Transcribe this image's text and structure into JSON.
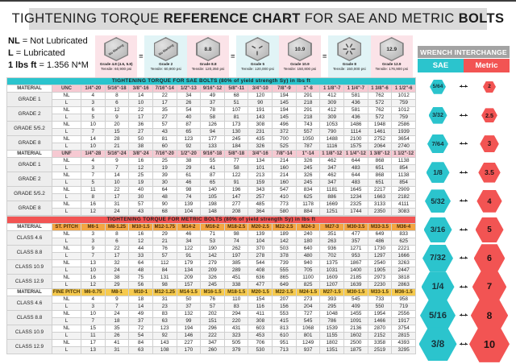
{
  "title": {
    "t1": "TIGHTENING TORQUE ",
    "t2": "REFERENCE CHART",
    "t3": " FOR SAE AND METRIC ",
    "t4": "BOLTS"
  },
  "legend": [
    {
      "key": "NL",
      "value": " = Not Lubricated"
    },
    {
      "key": "L",
      "value": " = Lubricated"
    },
    {
      "key": "1 lbs ft",
      "value": " = 1.356 N*M"
    }
  ],
  "watermark": "© UserManuals",
  "labels": {
    "material": "MATERIAL",
    "nl": "NL",
    "l": "L"
  },
  "grade_icons": [
    {
      "marking": "No Marking",
      "mark_type": "text",
      "name": "Grade 4.8 (4.6, 5.8)",
      "tensile": "Tensile: 60,900 psi",
      "bg": "pink",
      "equals_after": true
    },
    {
      "marking": "No Marking",
      "mark_type": "text",
      "name": "Grade 2",
      "tensile": "Tensile: 60,900 psi",
      "bg": "cyan",
      "equals_after": false
    },
    {
      "marking": "8.8",
      "mark_type": "num",
      "name": "Grade 8.8",
      "tensile": "Tensile: 120,350 psi",
      "bg": "pink",
      "equals_after": true
    },
    {
      "marking": "3 radial lines",
      "mark_type": "lines3",
      "name": "Grade 5",
      "tensile": "Tensile: 120,000 psi",
      "bg": "cyan",
      "equals_after": false
    },
    {
      "marking": "10.9",
      "mark_type": "num",
      "name": "Grade 10.9",
      "tensile": "Tensile: 150,800 psi",
      "bg": "pink",
      "equals_after": true
    },
    {
      "marking": "6 radial lines",
      "mark_type": "lines6",
      "name": "Grade 8",
      "tensile": "Tensile: 150,000 psi",
      "bg": "cyan",
      "equals_after": false
    },
    {
      "marking": "12.9",
      "mark_type": "num",
      "name": "Grade 12.9",
      "tensile": "Tensile: 176,900 psi",
      "bg": "pink",
      "equals_after": false
    }
  ],
  "wrench_interchange": {
    "header": "WRENCH INTERCHANGE",
    "sae_label": "SAE",
    "metric_label": "Metric",
    "pairs": [
      {
        "sae": "5/64",
        "metric": "2"
      },
      {
        "sae": "3/32",
        "metric": "2.5"
      },
      {
        "sae": "7/64",
        "metric": "3"
      },
      {
        "sae": "1/8",
        "metric": "3.5"
      },
      {
        "sae": "5/32",
        "metric": "4"
      },
      {
        "sae": "3/16",
        "metric": "5"
      },
      {
        "sae": "7/32",
        "metric": "6"
      },
      {
        "sae": "1/4",
        "metric": "7"
      },
      {
        "sae": "5/16",
        "metric": "8"
      },
      {
        "sae": "3/8",
        "metric": "10"
      }
    ]
  },
  "sae_table": {
    "banner": "TIGHTENING TORQUE FOR SAE BOLTS  (80% of yield strength Sy) in lbs ft",
    "theme": "sae",
    "sections": [
      {
        "thread_label": "UNC",
        "style": "pink",
        "sizes": [
          "1/4\"-20",
          "5/16\"-18",
          "3/8\"-16",
          "7/16\"-14",
          "1/2\"-13",
          "9/16\"-12",
          "5/8\"-11",
          "3/4\"-10",
          "7/8\"-9",
          "1\"-8",
          "1 1/8\"-7",
          "1 1/4\"-7",
          "1 3/8\"-6",
          "1 1/2\"-6"
        ],
        "rows": [
          {
            "material": "GRADE 1",
            "nl": [
              4,
              8,
              14,
              22,
              34,
              49,
              68,
              120,
              194,
              291,
              412,
              581,
              762,
              1012
            ],
            "l": [
              3,
              6,
              10,
              17,
              26,
              37,
              51,
              90,
              145,
              218,
              309,
              436,
              572,
              759
            ]
          },
          {
            "material": "GRADE 2",
            "nl": [
              6,
              12,
              22,
              35,
              54,
              78,
              107,
              191,
              194,
              291,
              412,
              581,
              762,
              1012
            ],
            "l": [
              5,
              9,
              17,
              27,
              40,
              58,
              81,
              143,
              145,
              218,
              309,
              436,
              572,
              759
            ]
          },
          {
            "material": "GRADE 5/5.2",
            "nl": [
              10,
              20,
              36,
              57,
              87,
              126,
              173,
              308,
              496,
              743,
              1053,
              1486,
              1948,
              2586
            ],
            "l": [
              7,
              15,
              27,
              43,
              65,
              94,
              130,
              231,
              372,
              557,
              790,
              1114,
              1461,
              1939
            ]
          },
          {
            "material": "GRADE 8",
            "nl": [
              14,
              28,
              50,
              81,
              123,
              177,
              245,
              435,
              700,
              1050,
              1488,
              2100,
              2752,
              3654
            ],
            "l": [
              10,
              21,
              38,
              60,
              92,
              133,
              184,
              326,
              525,
              787,
              1116,
              1575,
              2064,
              2740
            ]
          }
        ]
      },
      {
        "thread_label": "UNF",
        "style": "pink",
        "sizes": [
          "1/4\"-28",
          "5/16\"-24",
          "3/8\"-24",
          "7/16\"-20",
          "1/2\"-20",
          "9/16\"-18",
          "5/8\"-18",
          "3/4\"-16",
          "7/8\"-14",
          "1\"-14",
          "1 1/8\"-12",
          "1 1/4\"-12",
          "1 3/8\"-12",
          "1 1/2\"-12"
        ],
        "rows": [
          {
            "material": "GRADE 1",
            "nl": [
              4,
              9,
              16,
              25,
              38,
              55,
              77,
              134,
              214,
              326,
              462,
              644,
              868,
              1138
            ],
            "l": [
              3,
              7,
              12,
              19,
              29,
              41,
              58,
              101,
              160,
              245,
              347,
              483,
              651,
              854
            ]
          },
          {
            "material": "GRADE 2",
            "nl": [
              7,
              14,
              25,
              39,
              61,
              87,
              122,
              213,
              214,
              326,
              462,
              644,
              868,
              1138
            ],
            "l": [
              5,
              10,
              19,
              30,
              46,
              65,
              91,
              159,
              160,
              245,
              347,
              483,
              651,
              854
            ]
          },
          {
            "material": "GRADE 5/5.2",
            "nl": [
              11,
              22,
              40,
              64,
              98,
              140,
              196,
              343,
              547,
              834,
              1181,
              1645,
              2217,
              2909
            ],
            "l": [
              8,
              17,
              30,
              48,
              74,
              105,
              147,
              257,
              410,
              625,
              886,
              1234,
              1663,
              2182
            ]
          },
          {
            "material": "GRADE 8",
            "nl": [
              16,
              31,
              57,
              90,
              139,
              198,
              277,
              485,
              773,
              1178,
              1669,
              2325,
              3133,
              4111
            ],
            "l": [
              12,
              24,
              43,
              68,
              104,
              148,
              208,
              364,
              580,
              884,
              1251,
              1744,
              2350,
              3083
            ]
          }
        ]
      }
    ]
  },
  "metric_table": {
    "banner": "TIGHTENING TORQUE FOR METRIC BOLTS  (80% of yield strength Sy) in lbs ft",
    "theme": "met",
    "sections": [
      {
        "thread_label": "ST. PITCH",
        "style": "orange",
        "sizes": [
          "M6-1",
          "M8-1.25",
          "M10-1.5",
          "M12-1.75",
          "M14-2",
          "M16-2",
          "M18-2.5",
          "M20-2.5",
          "M22-2.5",
          "M24-3",
          "M27-3",
          "M30-3.5",
          "M33-3.5",
          "M36-4"
        ],
        "rows": [
          {
            "material": "CLASS 4.6",
            "nl": [
              3,
              8,
              16,
              29,
              46,
              71,
              98,
              139,
              189,
              240,
              351,
              477,
              649,
              833
            ],
            "l": [
              3,
              6,
              12,
              21,
              34,
              53,
              74,
              104,
              142,
              180,
              263,
              357,
              486,
              625
            ]
          },
          {
            "material": "CLASS 8.8",
            "nl": [
              9,
              22,
              44,
              76,
              122,
              190,
              262,
              370,
              503,
              640,
              936,
              1271,
              1730,
              2221
            ],
            "l": [
              7,
              17,
              33,
              57,
              91,
              142,
              197,
              278,
              378,
              480,
              702,
              953,
              1297,
              1666
            ]
          },
          {
            "material": "CLASS 10.9",
            "nl": [
              13,
              32,
              64,
              112,
              179,
              279,
              385,
              544,
              739,
              940,
              1375,
              1867,
              2540,
              3263
            ],
            "l": [
              10,
              24,
              48,
              84,
              134,
              209,
              289,
              408,
              555,
              705,
              1031,
              1400,
              1905,
              2447
            ]
          },
          {
            "material": "CLASS 12.9",
            "nl": [
              16,
              38,
              75,
              131,
              209,
              326,
              451,
              636,
              865,
              1100,
              1609,
              2185,
              2973,
              3818
            ],
            "l": [
              12,
              29,
              56,
              98,
              157,
              245,
              338,
              477,
              649,
              825,
              1207,
              1639,
              2230,
              2863
            ]
          }
        ]
      },
      {
        "thread_label": "FINE PITCH",
        "style": "gold",
        "sizes": [
          "M6-0.75",
          "M8-1",
          "M10-1",
          "M12-1.25",
          "M14-1.5",
          "M16-1.5",
          "M18-1.5",
          "M20-1.5",
          "M22-1.5",
          "M24-1.5",
          "M27-1.5",
          "M30-1.5",
          "M33-1.5",
          "M36-1.5"
        ],
        "rows": [
          {
            "material": "CLASS 4.6",
            "nl": [
              4,
              9,
              18,
              31,
              50,
              76,
              110,
              154,
              207,
              273,
              393,
              545,
              733,
              958
            ],
            "l": [
              3,
              7,
              14,
              23,
              37,
              57,
              83,
              116,
              156,
              204,
              295,
              409,
              550,
              719
            ]
          },
          {
            "material": "CLASS 8.8",
            "nl": [
              10,
              24,
              49,
              83,
              132,
              202,
              294,
              411,
              553,
              727,
              1048,
              1455,
              1954,
              2556
            ],
            "l": [
              7,
              18,
              37,
              63,
              99,
              151,
              220,
              308,
              415,
              545,
              786,
              1091,
              1466,
              1917
            ]
          },
          {
            "material": "CLASS 10.9",
            "nl": [
              15,
              35,
              72,
              123,
              194,
              296,
              431,
              603,
              813,
              1068,
              1539,
              2136,
              2870,
              3754
            ],
            "l": [
              11,
              26,
              54,
              92,
              146,
              222,
              323,
              453,
              610,
              801,
              1155,
              1602,
              2152,
              2815
            ]
          },
          {
            "material": "CLASS 12.9",
            "nl": [
              17,
              41,
              84,
              143,
              227,
              347,
              505,
              706,
              951,
              1249,
              1802,
              2500,
              3358,
              4393
            ],
            "l": [
              13,
              31,
              63,
              108,
              170,
              260,
              379,
              530,
              713,
              937,
              1351,
              1875,
              2519,
              3295
            ]
          }
        ]
      }
    ]
  },
  "colors": {
    "teal": "#2bc4cd",
    "red": "#f25453",
    "pink_header": "#f6c9d2",
    "orange_header": "#f3a542",
    "gold_header": "#f6ca4e",
    "title_bar": "#dadada",
    "wrench_header": "#a3a3a3"
  }
}
